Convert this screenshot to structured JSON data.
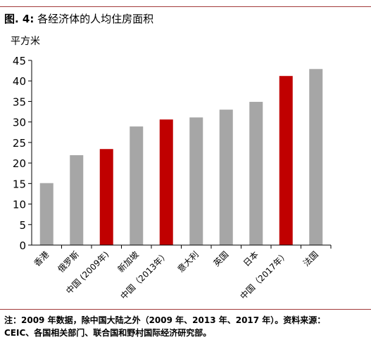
{
  "figure": {
    "label": "图. 4:",
    "title": "各经济体的人均住房面积"
  },
  "chart_data": {
    "type": "bar",
    "ylabel": "平方米",
    "xlabel": "",
    "ylim": [
      0,
      45
    ],
    "yticks": [
      0,
      5,
      10,
      15,
      20,
      25,
      30,
      35,
      40,
      45
    ],
    "categories": [
      "香港",
      "俄罗斯",
      "中国 (2009年)",
      "新加坡",
      "中国（2013年）",
      "意大利",
      "英国",
      "日本",
      "中国（2017年）",
      "法国"
    ],
    "values": [
      15.1,
      21.9,
      23.4,
      28.9,
      30.6,
      31.1,
      33.0,
      34.9,
      41.2,
      42.9
    ],
    "highlight_categories": [
      "中国 (2009年)",
      "中国（2013年）",
      "中国（2017年）"
    ],
    "colors": {
      "bar": "#a6a6a6",
      "highlight": "#c00000",
      "rule": "#a23a3a"
    },
    "grid": false,
    "legend": "none"
  },
  "footnote": {
    "line1": "注：2009 年数据，除中国大陆之外（2009 年、2013 年、2017 年）。资料来源：",
    "line2": "CEIC、各国相关部门、联合国和野村国际经济研究部。"
  }
}
